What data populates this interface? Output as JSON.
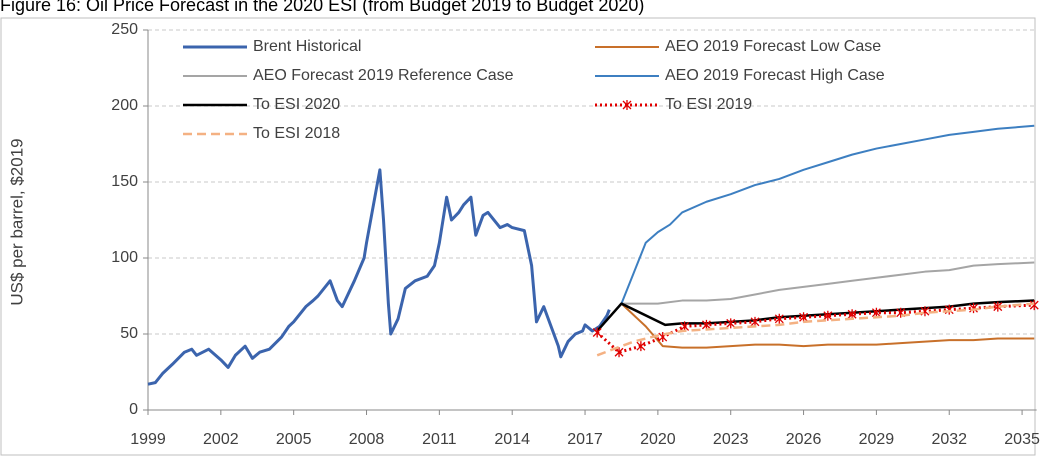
{
  "chart_data": {
    "type": "line",
    "title": "Figure 16: Oil Price Forecast in the 2020 ESI (from Budget 2019 to Budget 2020)",
    "y_label": "US$ per barrel, $2019",
    "xlim": [
      1999,
      2035.6
    ],
    "xticks": [
      1999,
      2002,
      2005,
      2008,
      2011,
      2014,
      2017,
      2020,
      2023,
      2026,
      2029,
      2032,
      2035
    ],
    "ylim": [
      0,
      250
    ],
    "yticks": [
      0,
      50,
      100,
      150,
      200,
      250
    ],
    "grid": true,
    "legend": "top",
    "series": [
      {
        "name": "Brent Historical",
        "color": "#3b64ad",
        "style": "solid",
        "width": 3,
        "x": [
          1999.0,
          1999.3,
          1999.6,
          2000.0,
          2000.5,
          2000.8,
          2001.0,
          2001.5,
          2002.0,
          2002.3,
          2002.6,
          2003.0,
          2003.3,
          2003.6,
          2004.0,
          2004.5,
          2004.8,
          2005.0,
          2005.5,
          2005.8,
          2006.0,
          2006.5,
          2006.8,
          2007.0,
          2007.5,
          2007.9,
          2008.0,
          2008.4,
          2008.55,
          2008.7,
          2008.9,
          2009.0,
          2009.3,
          2009.6,
          2010.0,
          2010.5,
          2010.8,
          2011.0,
          2011.3,
          2011.5,
          2011.8,
          2012.0,
          2012.3,
          2012.5,
          2012.8,
          2013.0,
          2013.5,
          2013.8,
          2014.0,
          2014.5,
          2014.8,
          2015.0,
          2015.3,
          2015.6,
          2015.9,
          2016.0,
          2016.3,
          2016.6,
          2016.9,
          2017.0,
          2017.3,
          2017.6,
          2017.9,
          2018.0
        ],
        "values": [
          17,
          18,
          24,
          30,
          38,
          40,
          36,
          40,
          33,
          28,
          36,
          42,
          34,
          38,
          40,
          48,
          55,
          58,
          68,
          72,
          75,
          85,
          72,
          68,
          85,
          100,
          110,
          145,
          158,
          125,
          70,
          50,
          60,
          80,
          85,
          88,
          95,
          110,
          140,
          125,
          130,
          135,
          140,
          115,
          128,
          130,
          120,
          122,
          120,
          118,
          95,
          58,
          68,
          55,
          42,
          35,
          45,
          50,
          52,
          56,
          52,
          55,
          62,
          66
        ]
      },
      {
        "name": "AEO 2019 Forecast Low Case",
        "color": "#c8702a",
        "style": "solid",
        "width": 2,
        "x": [
          2017.5,
          2018.5,
          2019.5,
          2020.2,
          2021,
          2022,
          2023,
          2024,
          2025,
          2026,
          2027,
          2028,
          2029,
          2030,
          2031,
          2032,
          2033,
          2034,
          2035.5
        ],
        "values": [
          52,
          70,
          55,
          42,
          41,
          41,
          42,
          43,
          43,
          42,
          43,
          43,
          43,
          44,
          45,
          46,
          46,
          47,
          47
        ]
      },
      {
        "name": "AEO Forecast 2019 Reference Case",
        "color": "#a5a5a5",
        "style": "solid",
        "width": 2,
        "x": [
          2017.5,
          2018.5,
          2019,
          2020,
          2021,
          2022,
          2023,
          2024,
          2025,
          2026,
          2027,
          2028,
          2029,
          2030,
          2031,
          2032,
          2033,
          2034,
          2035.5
        ],
        "values": [
          52,
          70,
          70,
          70,
          72,
          72,
          73,
          76,
          79,
          81,
          83,
          85,
          87,
          89,
          91,
          92,
          95,
          96,
          97
        ]
      },
      {
        "name": "AEO 2019 Forecast High Case",
        "color": "#3d7fc1",
        "style": "solid",
        "width": 2,
        "x": [
          2017.5,
          2018.5,
          2019.0,
          2019.5,
          2020.0,
          2020.5,
          2021,
          2022,
          2023,
          2024,
          2025,
          2026,
          2027,
          2028,
          2029,
          2030,
          2031,
          2032,
          2033,
          2034,
          2035.5
        ],
        "values": [
          52,
          70,
          90,
          110,
          117,
          122,
          130,
          137,
          142,
          148,
          152,
          158,
          163,
          168,
          172,
          175,
          178,
          181,
          183,
          185,
          187
        ]
      },
      {
        "name": "To ESI 2020",
        "color": "#000000",
        "style": "solid",
        "width": 2.5,
        "x": [
          2017.5,
          2018.5,
          2020.3,
          2021,
          2022,
          2023,
          2024,
          2025,
          2026,
          2027,
          2028,
          2029,
          2030,
          2031,
          2032,
          2033,
          2034,
          2035.5
        ],
        "values": [
          52,
          70,
          56,
          57,
          57,
          58,
          59,
          61,
          62,
          63,
          64,
          65,
          66,
          67,
          68,
          70,
          71,
          72
        ]
      },
      {
        "name": "To ESI 2019",
        "color": "#e00000",
        "style": "dotted",
        "marker": "asterisk",
        "width": 3,
        "x": [
          2017.5,
          2018.4,
          2019.3,
          2020.2,
          2021.1,
          2022,
          2023,
          2024,
          2025,
          2026,
          2027,
          2028,
          2029,
          2030,
          2031,
          2032,
          2033,
          2034,
          2035.5
        ],
        "values": [
          51,
          38,
          42,
          48,
          55,
          56,
          57,
          58,
          60,
          61,
          62,
          63,
          64,
          64,
          65,
          66,
          67,
          68,
          69
        ]
      },
      {
        "name": "To ESI 2018",
        "color": "#f4b183",
        "style": "dashed",
        "width": 2.5,
        "x": [
          2017.5,
          2019,
          2020,
          2021,
          2022,
          2023,
          2024,
          2025,
          2026,
          2027,
          2028,
          2029,
          2030,
          2031,
          2032,
          2033,
          2034,
          2035.5
        ],
        "values": [
          36,
          45,
          49,
          52,
          53,
          54,
          55,
          56,
          58,
          59,
          60,
          61,
          62,
          64,
          65,
          66,
          68,
          70
        ]
      }
    ]
  }
}
